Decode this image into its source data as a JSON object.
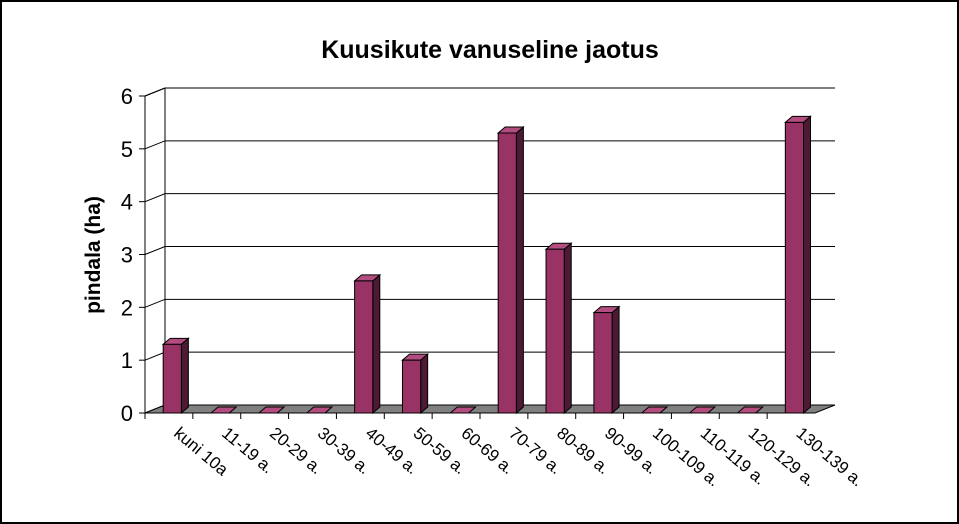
{
  "chart_data": {
    "type": "bar3d",
    "title": "Kuusikute vanuseline jaotus",
    "y_label": "pindala (ha)",
    "categories": [
      "kuni 10a",
      "11-19 a.",
      "20-29 a.",
      "30-39 a.",
      "40-49 a.",
      "50-59 a.",
      "60-69 a.",
      "70-79 a.",
      "80-89 a.",
      "90-99 a.",
      "100-109 a.",
      "110-119 a.",
      "120-129 a.",
      "130-139 a."
    ],
    "values": [
      1.3,
      0,
      0,
      0,
      2.5,
      1.0,
      0,
      5.3,
      3.1,
      1.9,
      0,
      0,
      0,
      5.5
    ],
    "color": "#993366",
    "ylim": [
      0,
      6
    ],
    "yticks": [
      0,
      1,
      2,
      3,
      4,
      5,
      6
    ],
    "grid": true
  }
}
